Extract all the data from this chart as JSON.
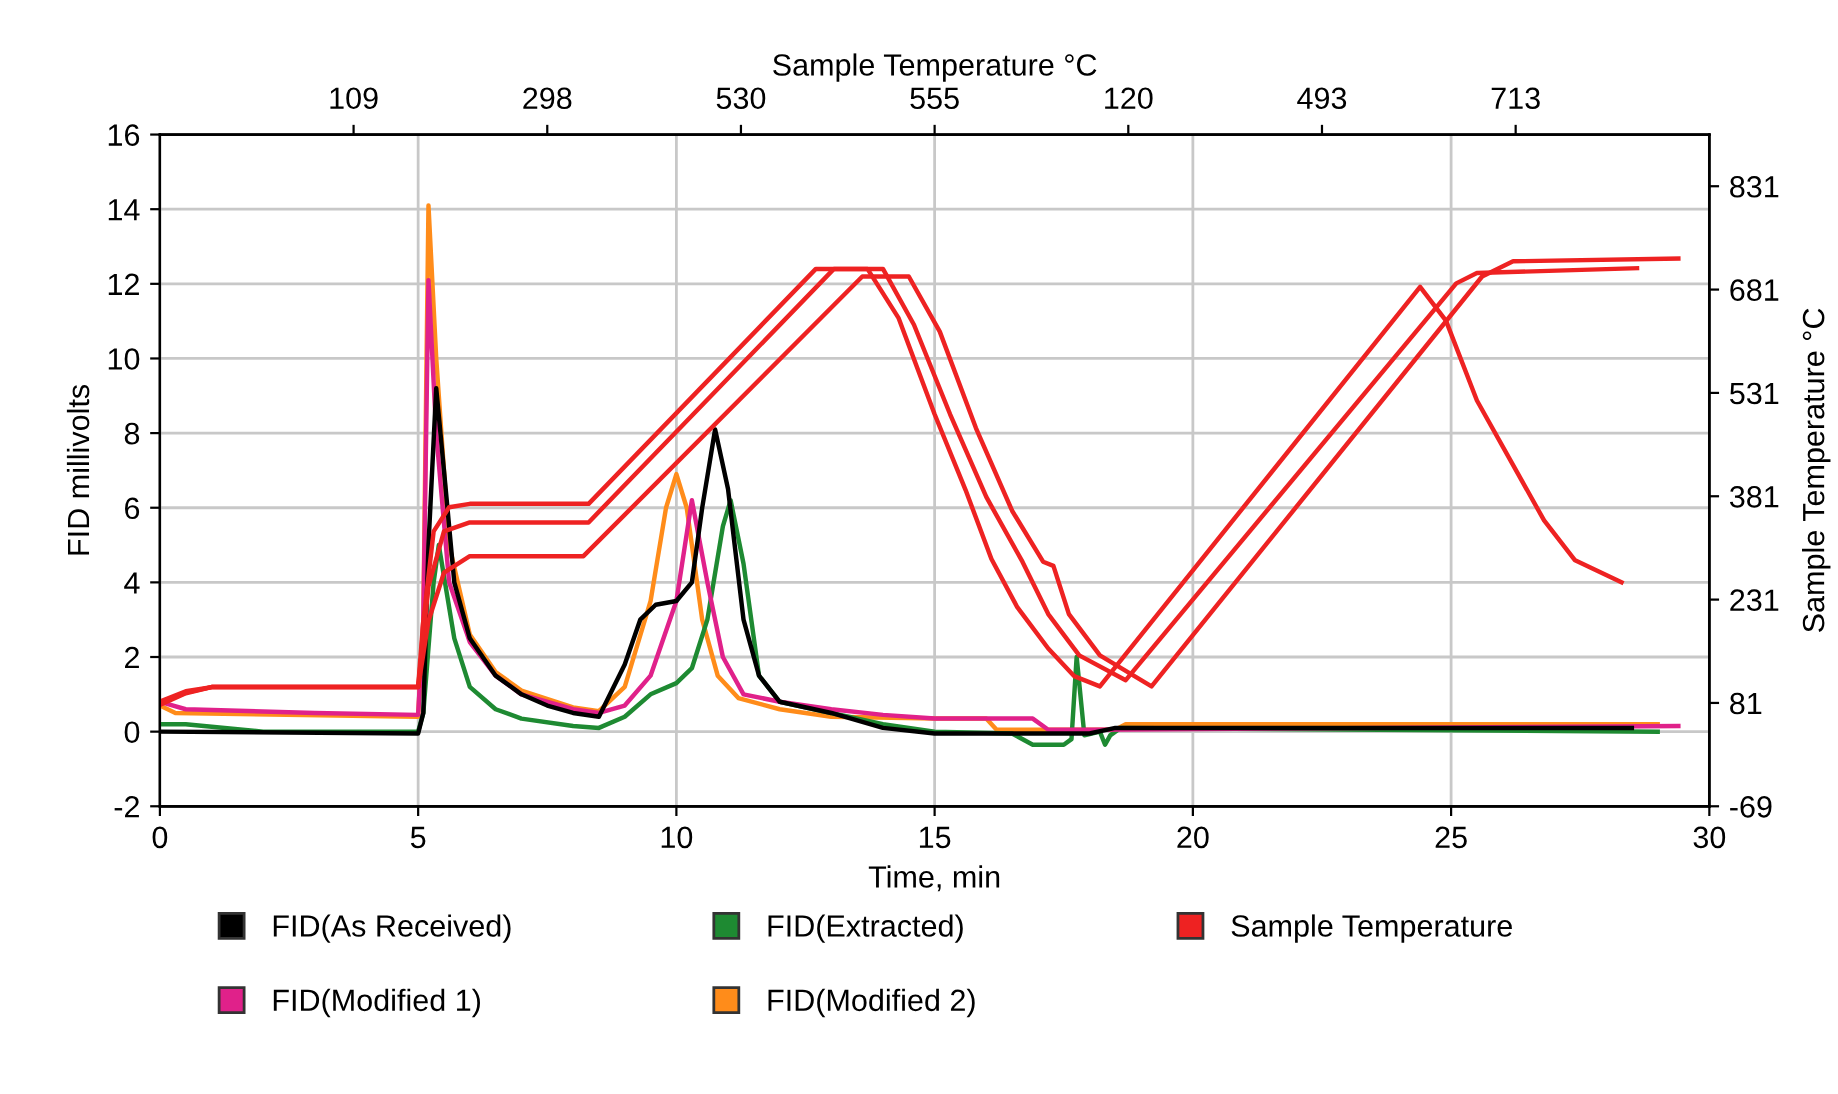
{
  "chart_data": {
    "type": "line",
    "xlabel": "Time, min",
    "ylabel": "FID millivolts",
    "y2label": "Sample Temperature °C",
    "x2label": "Sample Temperature °C",
    "xlim": [
      0,
      30
    ],
    "xticks": [
      0,
      5,
      10,
      15,
      20,
      25,
      30
    ],
    "ylim": [
      -2,
      16
    ],
    "yticks": [
      -2,
      0,
      2,
      4,
      6,
      8,
      10,
      12,
      14,
      16
    ],
    "y2lim": [
      -69,
      906
    ],
    "y2ticks": [
      -69,
      81,
      231,
      381,
      531,
      681,
      831
    ],
    "annotations": [
      "109",
      "298",
      "530",
      "555",
      "120",
      "493",
      "713"
    ],
    "grid": true,
    "legend": "bottom",
    "marker": "none",
    "line_style": "solid",
    "series": [
      {
        "name": "Sample Temperature",
        "color": "#ee2222",
        "axis": "y2",
        "x": [
          0,
          0.5,
          1,
          5,
          5.1,
          5.3,
          5.6,
          6,
          8.3,
          12.7,
          13.7,
          14.3,
          15.0,
          15.6,
          16.1,
          16.6,
          17.2,
          17.7,
          18.2,
          24.4,
          24.9,
          25.5,
          26.8,
          27.4,
          28.3
        ],
        "values": [
          83,
          98,
          104,
          104,
          200,
          330,
          365,
          370,
          370,
          711,
          711,
          640,
          500,
          390,
          290,
          220,
          160,
          120,
          105,
          685,
          636,
          520,
          346,
          288,
          256
        ]
      },
      {
        "color": "#ee2222",
        "axis": "y2",
        "x": [
          0,
          0.5,
          1,
          5,
          5.2,
          5.5,
          6,
          8.3,
          13.05,
          14.0,
          14.6,
          15.3,
          16.0,
          16.7,
          17.2,
          17.8,
          18.7,
          25.1,
          25.5,
          28.6
        ],
        "values": [
          80,
          96,
          104,
          104,
          250,
          330,
          343,
          343,
          711,
          711,
          630,
          500,
          380,
          286,
          210,
          150,
          114,
          690,
          705,
          712
        ]
      },
      {
        "color": "#ee2222",
        "axis": "y2",
        "x": [
          0,
          0.5,
          1,
          5,
          5.2,
          5.5,
          6,
          8.2,
          13.6,
          14.5,
          15.1,
          15.8,
          16.5,
          17.1,
          17.3,
          17.6,
          18.2,
          19.2,
          25.6,
          26.2,
          29.4
        ],
        "values": [
          78,
          95,
          104,
          104,
          200,
          270,
          294,
          294,
          700,
          700,
          620,
          480,
          360,
          286,
          280,
          210,
          150,
          105,
          700,
          722,
          726
        ]
      },
      {
        "name": "FID(As Received)",
        "color": "#000000",
        "x": [
          0,
          5,
          5.1,
          5.2,
          5.35,
          5.5,
          5.7,
          6,
          6.5,
          7,
          7.5,
          8,
          8.5,
          9,
          9.3,
          9.6,
          10,
          10.3,
          10.5,
          10.75,
          11,
          11.3,
          11.6,
          12,
          13,
          14,
          15,
          18,
          18.5,
          28.5
        ],
        "values": [
          0,
          -0.05,
          0.5,
          5,
          9.2,
          7,
          4,
          2.5,
          1.5,
          1.0,
          0.7,
          0.5,
          0.4,
          1.8,
          3.0,
          3.4,
          3.5,
          4,
          6,
          8.1,
          6.5,
          3,
          1.5,
          0.8,
          0.5,
          0.1,
          -0.05,
          -0.05,
          0.1,
          0.1
        ]
      },
      {
        "name": "FID(Modified 1)",
        "color": "#e0218a",
        "x": [
          0,
          0.5,
          3,
          5,
          5.1,
          5.2,
          5.35,
          5.6,
          6,
          6.5,
          7,
          8,
          8.5,
          9,
          9.5,
          10,
          10.3,
          10.6,
          10.9,
          11.3,
          12,
          13,
          14,
          15,
          16.9,
          17.2,
          18,
          29.4
        ],
        "values": [
          0.8,
          0.6,
          0.5,
          0.45,
          3,
          12.1,
          8,
          4,
          2.4,
          1.5,
          1.0,
          0.6,
          0.5,
          0.7,
          1.5,
          3.5,
          6.2,
          4,
          2,
          1.0,
          0.8,
          0.6,
          0.45,
          0.35,
          0.35,
          0.05,
          0.05,
          0.15
        ]
      },
      {
        "name": "FID(Extracted)",
        "color": "#1e8a32",
        "x": [
          0,
          0.5,
          2,
          5,
          5.1,
          5.3,
          5.4,
          5.7,
          6,
          6.5,
          7,
          8,
          8.5,
          9,
          9.5,
          10,
          10.3,
          10.6,
          10.9,
          11.05,
          11.3,
          11.6,
          12,
          13,
          14,
          15,
          16.5,
          16.9,
          17.5,
          17.65,
          17.75,
          17.9,
          18.2,
          18.3,
          18.4,
          18.6,
          29
        ],
        "values": [
          0.2,
          0.2,
          0.0,
          0,
          0.5,
          4,
          5.0,
          2.5,
          1.2,
          0.6,
          0.35,
          0.15,
          0.1,
          0.4,
          1.0,
          1.3,
          1.7,
          3,
          5.5,
          6.2,
          4.5,
          1.5,
          0.8,
          0.5,
          0.2,
          0,
          -0.05,
          -0.35,
          -0.35,
          -0.2,
          2.0,
          -0.1,
          0,
          -0.35,
          -0.1,
          0.1,
          0.0
        ]
      },
      {
        "name": "FID(Modified 2)",
        "color": "#ff8c1a",
        "x": [
          0,
          0.3,
          5,
          5.1,
          5.2,
          5.35,
          5.6,
          6,
          6.5,
          7,
          8,
          8.5,
          9,
          9.5,
          9.8,
          10,
          10.2,
          10.5,
          10.8,
          11.2,
          12,
          13,
          15,
          16.0,
          16.2,
          18.5,
          18.7,
          29
        ],
        "values": [
          0.7,
          0.5,
          0.4,
          3,
          14.1,
          10,
          5,
          2.6,
          1.6,
          1.1,
          0.65,
          0.55,
          1.2,
          3.5,
          6,
          6.9,
          6,
          3,
          1.5,
          0.9,
          0.6,
          0.4,
          0.35,
          0.35,
          0.05,
          0.05,
          0.2,
          0.2
        ]
      }
    ]
  }
}
